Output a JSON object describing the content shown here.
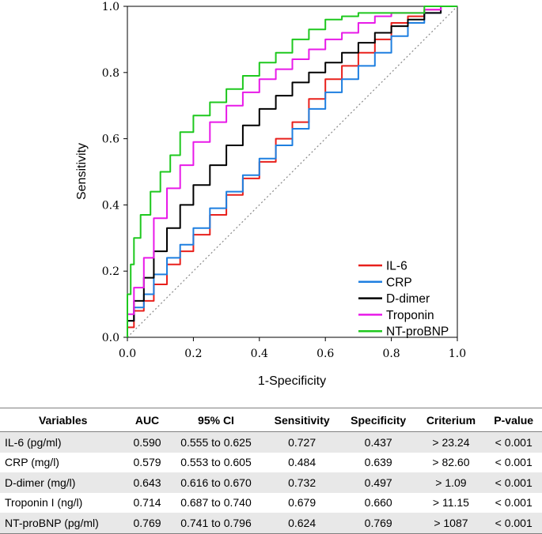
{
  "chart_data": {
    "type": "line",
    "xlabel": "1-Specificity",
    "ylabel": "Sensitivity",
    "xlim": [
      0,
      1
    ],
    "ylim": [
      0,
      1
    ],
    "x_ticks": [
      "0.0",
      "0.2",
      "0.4",
      "0.6",
      "0.8",
      "1.0"
    ],
    "y_ticks": [
      "0.0",
      "0.2",
      "0.4",
      "0.6",
      "0.8",
      "1.0"
    ],
    "reference_line": "diagonal",
    "legend_position": "bottom-right",
    "series": [
      {
        "name": "IL-6",
        "color": "#e8201c",
        "x": [
          0,
          0.02,
          0.05,
          0.08,
          0.12,
          0.16,
          0.2,
          0.25,
          0.3,
          0.35,
          0.4,
          0.45,
          0.5,
          0.55,
          0.6,
          0.65,
          0.7,
          0.75,
          0.8,
          0.85,
          0.9,
          0.95,
          1.0
        ],
        "y": [
          0,
          0.03,
          0.08,
          0.11,
          0.16,
          0.22,
          0.26,
          0.31,
          0.37,
          0.43,
          0.48,
          0.53,
          0.6,
          0.65,
          0.72,
          0.78,
          0.82,
          0.86,
          0.9,
          0.95,
          0.97,
          0.99,
          1.0
        ]
      },
      {
        "name": "CRP",
        "color": "#1e7fe0",
        "x": [
          0,
          0.02,
          0.05,
          0.08,
          0.12,
          0.16,
          0.2,
          0.25,
          0.3,
          0.35,
          0.4,
          0.45,
          0.5,
          0.55,
          0.6,
          0.65,
          0.7,
          0.75,
          0.8,
          0.85,
          0.9,
          0.95,
          1.0
        ],
        "y": [
          0,
          0.05,
          0.09,
          0.13,
          0.19,
          0.24,
          0.28,
          0.33,
          0.39,
          0.44,
          0.49,
          0.54,
          0.58,
          0.63,
          0.69,
          0.74,
          0.78,
          0.82,
          0.86,
          0.91,
          0.95,
          0.98,
          1.0
        ]
      },
      {
        "name": "D-dimer",
        "color": "#000000",
        "x": [
          0,
          0.02,
          0.05,
          0.08,
          0.12,
          0.16,
          0.2,
          0.25,
          0.3,
          0.35,
          0.4,
          0.45,
          0.5,
          0.55,
          0.6,
          0.65,
          0.7,
          0.75,
          0.8,
          0.85,
          0.9,
          0.95,
          1.0
        ],
        "y": [
          0,
          0.05,
          0.11,
          0.18,
          0.26,
          0.33,
          0.4,
          0.46,
          0.52,
          0.58,
          0.64,
          0.69,
          0.73,
          0.77,
          0.8,
          0.83,
          0.86,
          0.89,
          0.92,
          0.94,
          0.96,
          0.98,
          1.0
        ]
      },
      {
        "name": "Troponin",
        "color": "#e81ae8",
        "x": [
          0,
          0.02,
          0.05,
          0.08,
          0.12,
          0.16,
          0.2,
          0.25,
          0.3,
          0.35,
          0.4,
          0.45,
          0.5,
          0.55,
          0.6,
          0.65,
          0.7,
          0.75,
          0.8,
          0.85,
          0.9,
          0.95,
          1.0
        ],
        "y": [
          0,
          0.07,
          0.15,
          0.24,
          0.36,
          0.45,
          0.52,
          0.59,
          0.65,
          0.7,
          0.74,
          0.78,
          0.81,
          0.84,
          0.87,
          0.9,
          0.92,
          0.95,
          0.97,
          0.98,
          0.98,
          0.99,
          1.0
        ]
      },
      {
        "name": "NT-proBNP",
        "color": "#1ec81e",
        "x": [
          0,
          0.01,
          0.02,
          0.04,
          0.07,
          0.1,
          0.13,
          0.16,
          0.2,
          0.25,
          0.3,
          0.35,
          0.4,
          0.45,
          0.5,
          0.55,
          0.6,
          0.65,
          0.7,
          0.75,
          0.8,
          0.9,
          1.0
        ],
        "y": [
          0,
          0.13,
          0.22,
          0.3,
          0.37,
          0.44,
          0.5,
          0.55,
          0.62,
          0.67,
          0.71,
          0.75,
          0.79,
          0.83,
          0.86,
          0.9,
          0.93,
          0.96,
          0.97,
          0.98,
          0.98,
          0.98,
          1.0
        ]
      }
    ]
  },
  "table": {
    "headers": [
      "Variables",
      "AUC",
      "95% CI",
      "Sensitivity",
      "Specificity",
      "Criterium",
      "P-value"
    ],
    "rows": [
      [
        "IL-6 (pg/ml)",
        "0.590",
        "0.555 to 0.625",
        "0.727",
        "0.437",
        "> 23.24",
        "< 0.001"
      ],
      [
        "CRP (mg/l)",
        "0.579",
        "0.553 to 0.605",
        "0.484",
        "0.639",
        "> 82.60",
        "< 0.001"
      ],
      [
        "D-dimer (mg/l)",
        "0.643",
        "0.616 to 0.670",
        "0.732",
        "0.497",
        "> 1.09",
        "< 0.001"
      ],
      [
        "Troponin I (ng/l)",
        "0.714",
        "0.687 to 0.740",
        "0.679",
        "0.660",
        "> 11.15",
        "< 0.001"
      ],
      [
        "NT-proBNP (pg/ml)",
        "0.769",
        "0.741 to 0.796",
        "0.624",
        "0.769",
        "> 1087",
        "< 0.001"
      ]
    ]
  }
}
